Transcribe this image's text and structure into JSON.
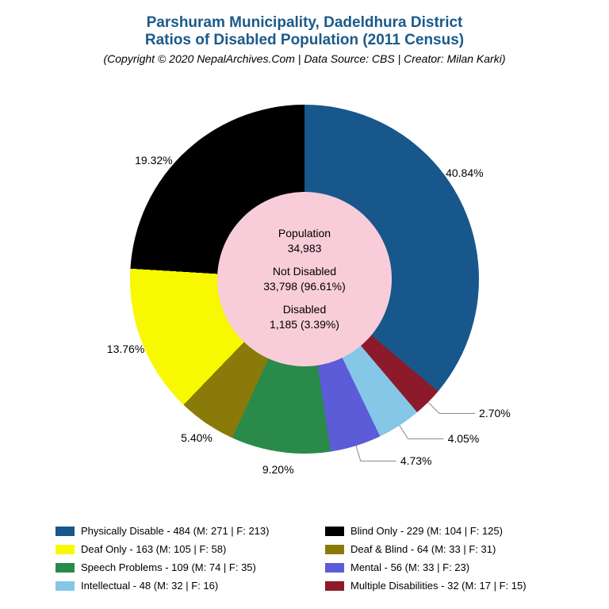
{
  "title": {
    "line1": "Parshuram Municipality, Dadeldhura District",
    "line2": "Ratios of Disabled Population (2011 Census)",
    "color": "#1a5a8a",
    "fontsize": 19
  },
  "subtitle": {
    "text": "(Copyright © 2020 NepalArchives.Com | Data Source: CBS | Creator: Milan Karki)",
    "fontsize": 14
  },
  "chart": {
    "type": "pie-donut",
    "background_color": "#ffffff",
    "donut_outer_radius": 220,
    "donut_inner_radius": 110,
    "hole_background": "#f8cdd9",
    "start_angle_deg": -17,
    "center_text": {
      "population_label": "Population",
      "population_value": "34,983",
      "not_disabled_label": "Not Disabled",
      "not_disabled_value": "33,798 (96.61%)",
      "disabled_label": "Disabled",
      "disabled_value": "1,185 (3.39%)",
      "fontsize": 14
    },
    "slices": [
      {
        "label": "Physically Disable",
        "count": 484,
        "m": 271,
        "f": 213,
        "pct": 40.84,
        "pct_label": "40.84%",
        "color": "#18578c"
      },
      {
        "label": "Multiple Disabilities",
        "count": 32,
        "m": 17,
        "f": 15,
        "pct": 2.7,
        "pct_label": "2.70%",
        "color": "#8c1a2a"
      },
      {
        "label": "Intellectual",
        "count": 48,
        "m": 32,
        "f": 16,
        "pct": 4.05,
        "pct_label": "4.05%",
        "color": "#86c6e6"
      },
      {
        "label": "Mental",
        "count": 56,
        "m": 33,
        "f": 23,
        "pct": 4.73,
        "pct_label": "4.73%",
        "color": "#5c5cd8"
      },
      {
        "label": "Speech Problems",
        "count": 109,
        "m": 74,
        "f": 35,
        "pct": 9.2,
        "pct_label": "9.20%",
        "color": "#2a8a4a"
      },
      {
        "label": "Deaf & Blind",
        "count": 64,
        "m": 33,
        "f": 31,
        "pct": 5.4,
        "pct_label": "5.40%",
        "color": "#8a7a0a"
      },
      {
        "label": "Deaf Only",
        "count": 163,
        "m": 105,
        "f": 58,
        "pct": 13.76,
        "pct_label": "13.76%",
        "color": "#f8f800"
      },
      {
        "label": "Blind Only",
        "count": 229,
        "m": 104,
        "f": 125,
        "pct": 19.32,
        "pct_label": "19.32%",
        "color": "#000000"
      }
    ],
    "label_fontsize": 14
  },
  "legend": {
    "fontsize": 13,
    "swatch_w": 24,
    "swatch_h": 12,
    "order": [
      0,
      7,
      6,
      5,
      4,
      3,
      2,
      1
    ],
    "items": [
      "Physically Disable - 484 (M: 271 | F: 213)",
      "Blind Only - 229 (M: 104 | F: 125)",
      "Deaf Only - 163 (M: 105 | F: 58)",
      "Deaf & Blind - 64 (M: 33 | F: 31)",
      "Speech Problems - 109 (M: 74 | F: 35)",
      "Mental - 56 (M: 33 | F: 23)",
      "Intellectual - 48 (M: 32 | F: 16)",
      "Multiple Disabilities - 32 (M: 17 | F: 15)"
    ]
  }
}
